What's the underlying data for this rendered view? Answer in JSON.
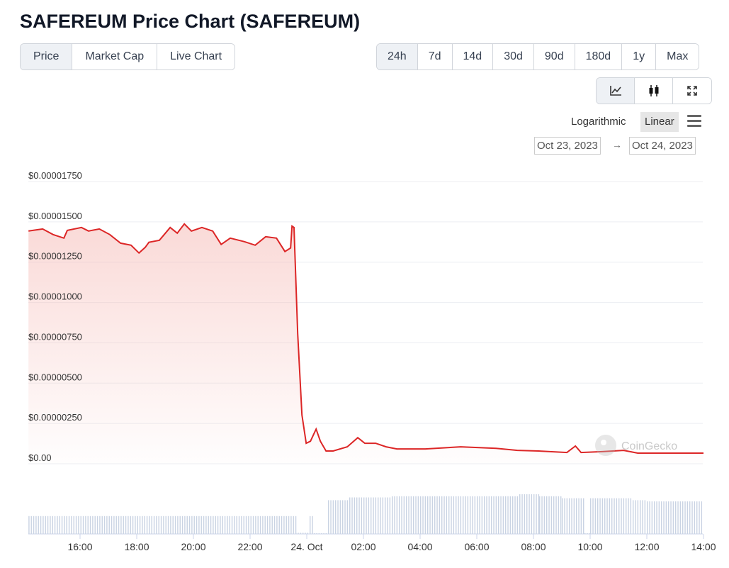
{
  "title": "SAFEREUM Price Chart (SAFEREUM)",
  "tabs": [
    "Price",
    "Market Cap",
    "Live Chart"
  ],
  "ranges": [
    "24h",
    "7d",
    "14d",
    "30d",
    "90d",
    "180d",
    "1y",
    "Max"
  ],
  "active_range": "24h",
  "chart_types": [
    {
      "name": "line-chart-icon",
      "glyph": "📈"
    },
    {
      "name": "candlestick-icon",
      "glyph": "▮"
    },
    {
      "name": "fullscreen-icon",
      "glyph": "⤢"
    }
  ],
  "scale": {
    "log": "Logarithmic",
    "linear": "Linear"
  },
  "date_range": {
    "from": "Oct 23, 2023",
    "arrow": "→",
    "to": "Oct 24, 2023"
  },
  "watermark": "CoinGecko",
  "colors": {
    "line": "#dc2626",
    "fill": "#f5b5b0",
    "volume": "#c9d3e3"
  },
  "chart_data": {
    "type": "line",
    "title": "SAFEREUM Price Chart",
    "x_unit": "hours since Oct 23 00:00",
    "y_unit": "USD (x1e-5)",
    "ylim": [
      0,
      1.75
    ],
    "xlim": [
      14.18,
      38.0
    ],
    "yticks": [
      {
        "v": 0,
        "label": "$0.00"
      },
      {
        "v": 0.25,
        "label": "$0.00000250"
      },
      {
        "v": 0.5,
        "label": "$0.00000500"
      },
      {
        "v": 0.75,
        "label": "$0.00000750"
      },
      {
        "v": 1.0,
        "label": "$0.00001000"
      },
      {
        "v": 1.25,
        "label": "$0.00001250"
      },
      {
        "v": 1.5,
        "label": "$0.00001500"
      },
      {
        "v": 1.75,
        "label": "$0.00001750"
      }
    ],
    "xticks": [
      {
        "v": 16,
        "label": "16:00"
      },
      {
        "v": 18,
        "label": "18:00"
      },
      {
        "v": 20,
        "label": "20:00"
      },
      {
        "v": 22,
        "label": "22:00"
      },
      {
        "v": 24,
        "label": "24. Oct"
      },
      {
        "v": 26,
        "label": "02:00"
      },
      {
        "v": 28,
        "label": "04:00"
      },
      {
        "v": 30,
        "label": "06:00"
      },
      {
        "v": 32,
        "label": "08:00"
      },
      {
        "v": 34,
        "label": "10:00"
      },
      {
        "v": 36,
        "label": "12:00"
      },
      {
        "v": 38,
        "label": "14:00"
      }
    ],
    "price": [
      [
        14.18,
        1.443
      ],
      [
        14.68,
        1.456
      ],
      [
        15.05,
        1.421
      ],
      [
        15.43,
        1.399
      ],
      [
        15.55,
        1.447
      ],
      [
        16.05,
        1.465
      ],
      [
        16.3,
        1.443
      ],
      [
        16.68,
        1.456
      ],
      [
        17.05,
        1.421
      ],
      [
        17.43,
        1.368
      ],
      [
        17.8,
        1.355
      ],
      [
        18.08,
        1.307
      ],
      [
        18.3,
        1.342
      ],
      [
        18.43,
        1.373
      ],
      [
        18.8,
        1.386
      ],
      [
        19.18,
        1.465
      ],
      [
        19.43,
        1.43
      ],
      [
        19.68,
        1.487
      ],
      [
        19.93,
        1.443
      ],
      [
        20.3,
        1.465
      ],
      [
        20.68,
        1.443
      ],
      [
        20.98,
        1.36
      ],
      [
        21.3,
        1.399
      ],
      [
        21.8,
        1.377
      ],
      [
        22.18,
        1.355
      ],
      [
        22.55,
        1.408
      ],
      [
        22.93,
        1.399
      ],
      [
        23.23,
        1.316
      ],
      [
        23.43,
        1.338
      ],
      [
        23.48,
        1.474
      ],
      [
        23.55,
        1.465
      ],
      [
        23.68,
        0.807
      ],
      [
        23.83,
        0.303
      ],
      [
        23.98,
        0.127
      ],
      [
        24.13,
        0.14
      ],
      [
        24.33,
        0.215
      ],
      [
        24.48,
        0.14
      ],
      [
        24.68,
        0.079
      ],
      [
        24.93,
        0.079
      ],
      [
        25.43,
        0.105
      ],
      [
        25.8,
        0.162
      ],
      [
        26.05,
        0.127
      ],
      [
        26.43,
        0.127
      ],
      [
        26.8,
        0.105
      ],
      [
        27.18,
        0.092
      ],
      [
        28.18,
        0.092
      ],
      [
        29.43,
        0.105
      ],
      [
        30.68,
        0.096
      ],
      [
        31.43,
        0.083
      ],
      [
        32.18,
        0.079
      ],
      [
        33.18,
        0.07
      ],
      [
        33.48,
        0.11
      ],
      [
        33.68,
        0.07
      ],
      [
        34.43,
        0.075
      ],
      [
        35.18,
        0.083
      ],
      [
        35.68,
        0.066
      ],
      [
        38.0,
        0.066
      ]
    ],
    "volume_relative": [
      [
        14.18,
        23.6,
        0.45
      ],
      [
        23.6,
        24.1,
        0.03
      ],
      [
        24.1,
        24.25,
        0.45
      ],
      [
        24.25,
        24.75,
        0.02
      ],
      [
        24.75,
        25.5,
        0.85
      ],
      [
        25.5,
        27,
        0.92
      ],
      [
        27,
        31.5,
        0.95
      ],
      [
        31.5,
        32.2,
        1.0
      ],
      [
        32.2,
        33.0,
        0.95
      ],
      [
        33.0,
        33.8,
        0.9
      ],
      [
        33.8,
        34.0,
        0.02
      ],
      [
        34.0,
        35.5,
        0.9
      ],
      [
        35.5,
        36.0,
        0.85
      ],
      [
        36.0,
        38.0,
        0.82
      ]
    ]
  }
}
